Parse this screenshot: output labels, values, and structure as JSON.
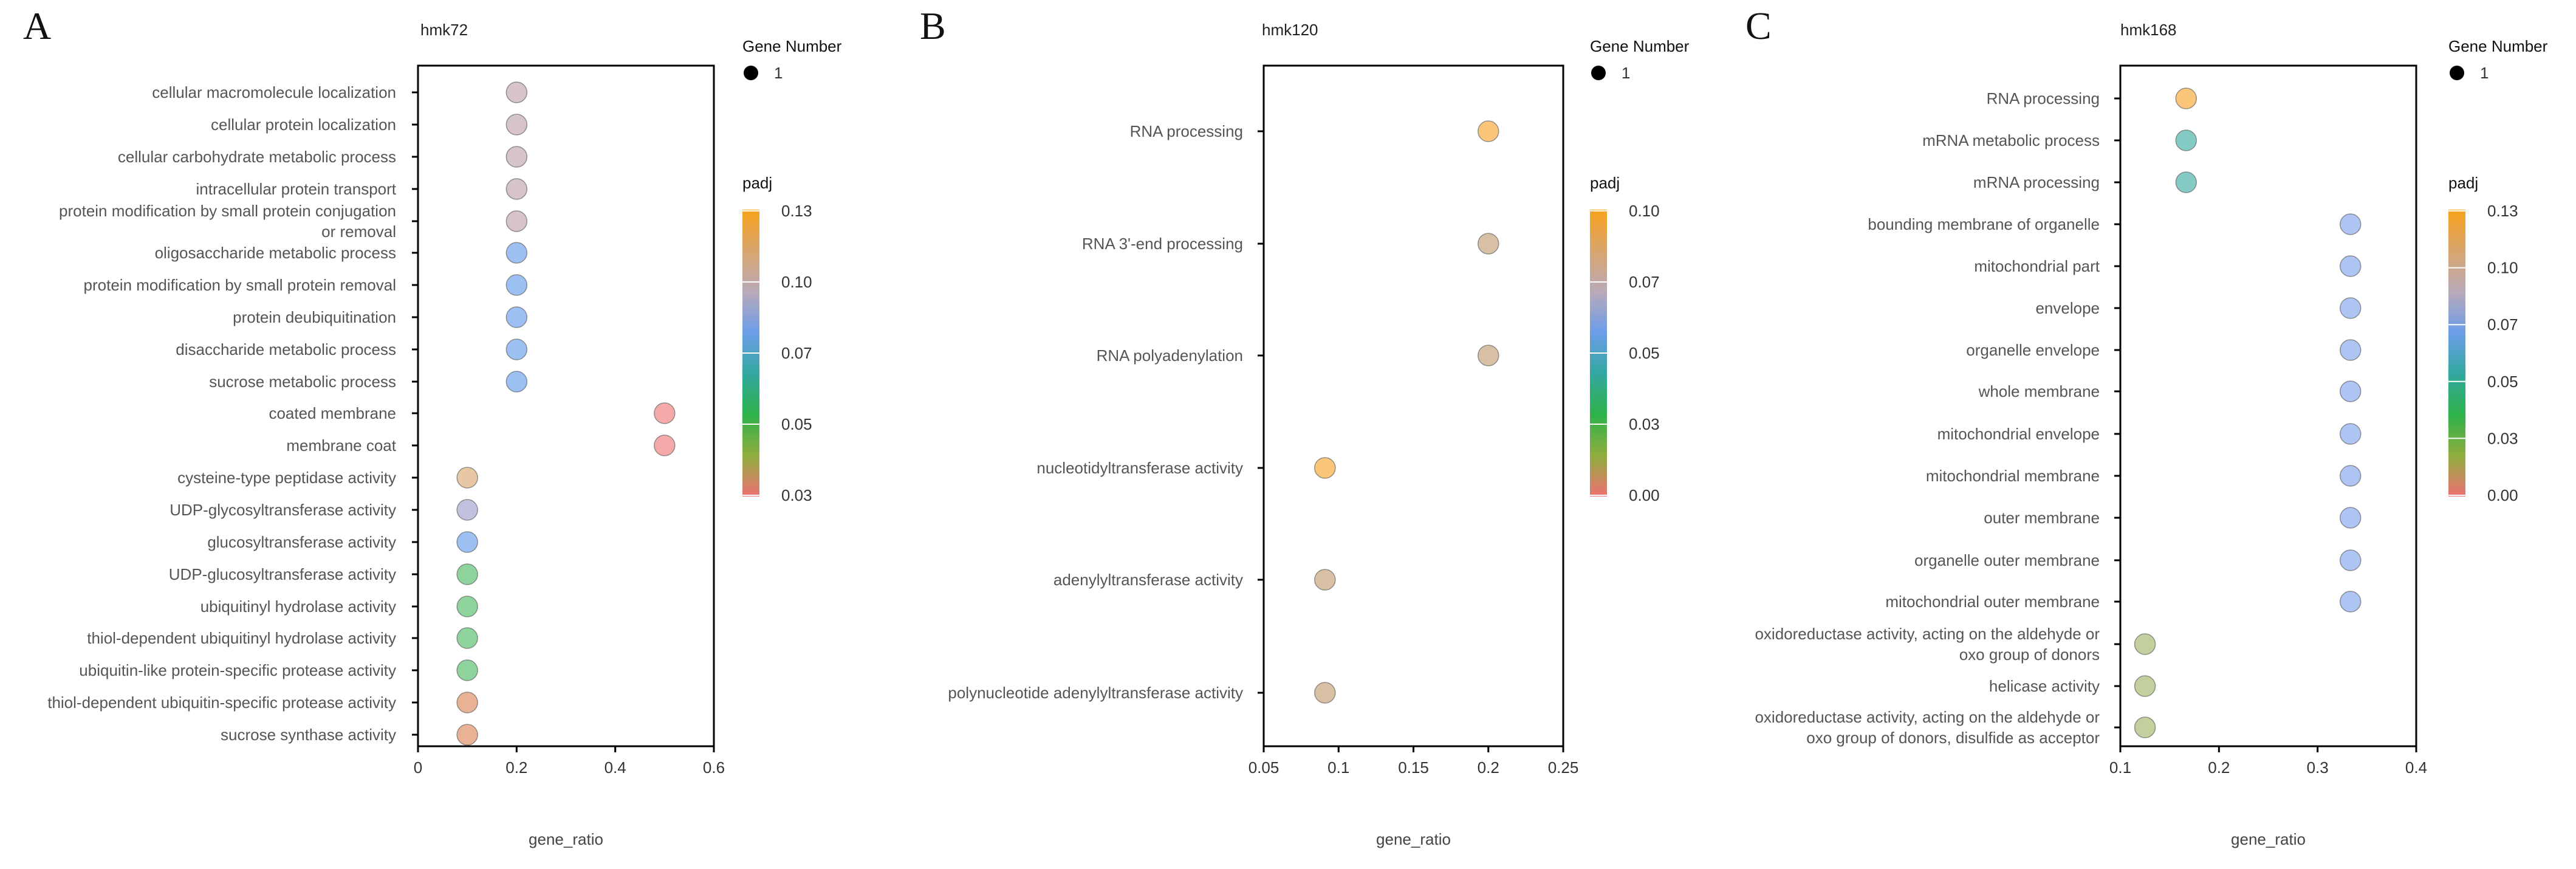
{
  "chart_data": [
    {
      "type": "scatter",
      "panel_letter": "A",
      "title": "hmk72",
      "xlabel": "gene_ratio",
      "ylabel": "",
      "xlim": [
        0,
        0.6
      ],
      "xticks": [
        0,
        0.2,
        0.4,
        0.6
      ],
      "xtick_labels": [
        "0",
        "0.2",
        "0.4",
        "0.6"
      ],
      "grid": false,
      "legend_position": "right",
      "size_legend": {
        "title": "Gene Number",
        "values": [
          1
        ],
        "labels": [
          "1"
        ]
      },
      "color_legend": {
        "title": "padj",
        "ticks": [
          0.13,
          0.1,
          0.07,
          0.05,
          0.03
        ],
        "tick_labels": [
          "0.13",
          "0.10",
          "0.07",
          "0.05",
          "0.03"
        ],
        "stops": [
          "#f7a21b",
          "#d9a56d",
          "#b9aab8",
          "#6c9de8",
          "#32a8a0",
          "#2db24a",
          "#8fae3e",
          "#ee7072"
        ]
      },
      "categories": [
        [
          "cellular macromolecule localization"
        ],
        [
          "cellular protein localization"
        ],
        [
          "cellular carbohydrate metabolic process"
        ],
        [
          "intracellular protein transport"
        ],
        [
          "protein modification by small protein conjugation",
          "or removal"
        ],
        [
          "oligosaccharide metabolic process"
        ],
        [
          "protein modification by small protein removal"
        ],
        [
          "protein deubiquitination"
        ],
        [
          "disaccharide metabolic process"
        ],
        [
          "sucrose metabolic process"
        ],
        [
          "coated membrane"
        ],
        [
          "membrane coat"
        ],
        [
          "cysteine-type peptidase activity"
        ],
        [
          "UDP-glycosyltransferase activity"
        ],
        [
          "glucosyltransferase activity"
        ],
        [
          "UDP-glucosyltransferase activity"
        ],
        [
          "ubiquitinyl hydrolase activity"
        ],
        [
          "thiol-dependent ubiquitinyl hydrolase activity"
        ],
        [
          "ubiquitin-like protein-specific protease activity"
        ],
        [
          "thiol-dependent ubiquitin-specific protease activity"
        ],
        [
          "sucrose synthase activity"
        ]
      ],
      "values": [
        0.2,
        0.2,
        0.2,
        0.2,
        0.2,
        0.2,
        0.2,
        0.2,
        0.2,
        0.2,
        0.5,
        0.5,
        0.1,
        0.1,
        0.1,
        0.1,
        0.1,
        0.1,
        0.1,
        0.1,
        0.1
      ],
      "gene_number": [
        1,
        1,
        1,
        1,
        1,
        1,
        1,
        1,
        1,
        1,
        1,
        1,
        1,
        1,
        1,
        1,
        1,
        1,
        1,
        1,
        1
      ],
      "padj": [
        0.095,
        0.095,
        0.095,
        0.095,
        0.095,
        0.07,
        0.07,
        0.07,
        0.07,
        0.07,
        0.03,
        0.03,
        0.12,
        0.09,
        0.07,
        0.05,
        0.05,
        0.05,
        0.05,
        0.035,
        0.035
      ],
      "point_colors": [
        "#d7c4c8",
        "#d7c4c8",
        "#d7c4c8",
        "#d7c4c8",
        "#d7c4c8",
        "#9cc0f2",
        "#9cc0f2",
        "#9cc0f2",
        "#9cc0f2",
        "#9cc0f2",
        "#f5aaaa",
        "#f5aaaa",
        "#e8c8a4",
        "#c2c2de",
        "#9cc0f2",
        "#8fd49c",
        "#8fd49c",
        "#8fd49c",
        "#8fd49c",
        "#eab294",
        "#eab294"
      ]
    },
    {
      "type": "scatter",
      "panel_letter": "B",
      "title": "hmk120",
      "xlabel": "gene_ratio",
      "ylabel": "",
      "xlim": [
        0.05,
        0.25
      ],
      "xticks": [
        0.05,
        0.1,
        0.15,
        0.2,
        0.25
      ],
      "xtick_labels": [
        "0.05",
        "0.1",
        "0.15",
        "0.2",
        "0.25"
      ],
      "grid": false,
      "legend_position": "right",
      "size_legend": {
        "title": "Gene Number",
        "values": [
          1
        ],
        "labels": [
          "1"
        ]
      },
      "color_legend": {
        "title": "padj",
        "ticks": [
          0.1,
          0.07,
          0.05,
          0.03,
          0.0
        ],
        "tick_labels": [
          "0.10",
          "0.07",
          "0.05",
          "0.03",
          "0.00"
        ],
        "stops": [
          "#f7a21b",
          "#d9a56d",
          "#b9aab8",
          "#6c9de8",
          "#32a8a0",
          "#2db24a",
          "#8fae3e",
          "#ee7072"
        ]
      },
      "categories": [
        [
          "RNA processing"
        ],
        [
          "RNA 3'-end processing"
        ],
        [
          "RNA polyadenylation"
        ],
        [
          "nucleotidyltransferase activity"
        ],
        [
          "adenylyltransferase activity"
        ],
        [
          "polynucleotide adenylyltransferase activity"
        ]
      ],
      "values": [
        0.2,
        0.2,
        0.2,
        0.0909,
        0.0909,
        0.0909
      ],
      "gene_number": [
        1,
        1,
        1,
        1,
        1,
        1
      ],
      "padj": [
        0.1,
        0.08,
        0.08,
        0.1,
        0.08,
        0.08
      ],
      "point_colors": [
        "#fbc67a",
        "#d8c0a4",
        "#d8c0a4",
        "#fbc67a",
        "#d8c0a4",
        "#d8c0a4"
      ]
    },
    {
      "type": "scatter",
      "panel_letter": "C",
      "title": "hmk168",
      "xlabel": "gene_ratio",
      "ylabel": "",
      "xlim": [
        0.1,
        0.4
      ],
      "xticks": [
        0.1,
        0.2,
        0.3,
        0.4
      ],
      "xtick_labels": [
        "0.1",
        "0.2",
        "0.3",
        "0.4"
      ],
      "grid": false,
      "legend_position": "right",
      "size_legend": {
        "title": "Gene Number",
        "values": [
          1
        ],
        "labels": [
          "1"
        ]
      },
      "color_legend": {
        "title": "padj",
        "ticks": [
          0.13,
          0.1,
          0.07,
          0.05,
          0.03,
          0.0
        ],
        "tick_labels": [
          "0.13",
          "0.10",
          "0.07",
          "0.05",
          "0.03",
          "0.00"
        ],
        "stops": [
          "#f7a21b",
          "#d9a56d",
          "#b9aab8",
          "#6c9de8",
          "#32a8a0",
          "#2db24a",
          "#8fae3e",
          "#ee7072"
        ]
      },
      "categories": [
        [
          "RNA processing"
        ],
        [
          "mRNA metabolic process"
        ],
        [
          "mRNA processing"
        ],
        [
          "bounding membrane of organelle"
        ],
        [
          "mitochondrial part"
        ],
        [
          "envelope"
        ],
        [
          "organelle envelope"
        ],
        [
          "whole membrane"
        ],
        [
          "mitochondrial envelope"
        ],
        [
          "mitochondrial membrane"
        ],
        [
          "outer membrane"
        ],
        [
          "organelle outer membrane"
        ],
        [
          "mitochondrial outer membrane"
        ],
        [
          "oxidoreductase activity, acting on the aldehyde or",
          "oxo group of donors"
        ],
        [
          "helicase activity"
        ],
        [
          "oxidoreductase activity, acting on the aldehyde or",
          "oxo group of donors, disulfide as acceptor"
        ]
      ],
      "values": [
        0.1667,
        0.1667,
        0.1667,
        0.3333,
        0.3333,
        0.3333,
        0.3333,
        0.3333,
        0.3333,
        0.3333,
        0.3333,
        0.3333,
        0.3333,
        0.125,
        0.125,
        0.125
      ],
      "gene_number": [
        1,
        1,
        1,
        1,
        1,
        1,
        1,
        1,
        1,
        1,
        1,
        1,
        1,
        1,
        1,
        1
      ],
      "padj": [
        0.125,
        0.05,
        0.05,
        0.07,
        0.07,
        0.07,
        0.07,
        0.07,
        0.07,
        0.07,
        0.07,
        0.07,
        0.07,
        0.025,
        0.025,
        0.025
      ],
      "point_colors": [
        "#fbc67a",
        "#84cac5",
        "#84cac5",
        "#aec4f2",
        "#aec4f2",
        "#aec4f2",
        "#aec4f2",
        "#aec4f2",
        "#aec4f2",
        "#aec4f2",
        "#aec4f2",
        "#aec4f2",
        "#aec4f2",
        "#c2d09e",
        "#c2d09e",
        "#c2d09e"
      ]
    }
  ]
}
